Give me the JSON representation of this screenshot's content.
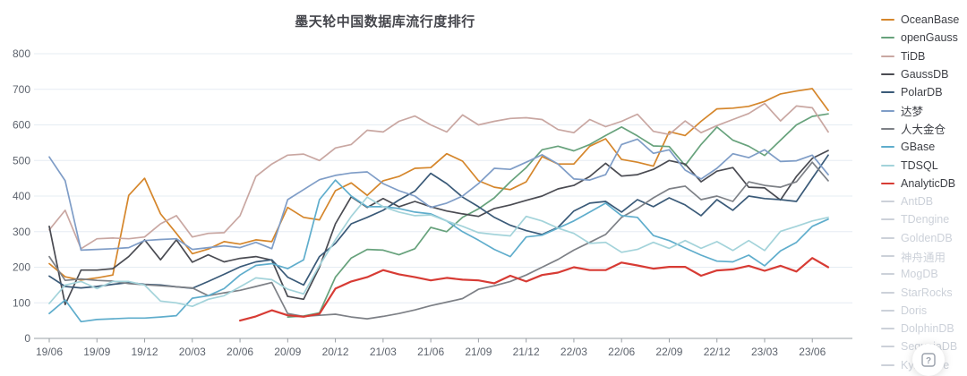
{
  "title": "墨天轮中国数据库流行度排行",
  "help_button": {
    "icon": "question-mark"
  },
  "chart_data": {
    "type": "line",
    "title": "墨天轮中国数据库流行度排行",
    "ylim": [
      0,
      800
    ],
    "y_ticks": [
      0,
      100,
      200,
      300,
      400,
      500,
      600,
      700,
      800
    ],
    "x_tick_labels": [
      "19/06",
      "19/09",
      "19/12",
      "20/03",
      "20/06",
      "20/09",
      "20/12",
      "21/03",
      "21/06",
      "21/09",
      "21/12",
      "22/03",
      "22/06",
      "22/09",
      "22/12",
      "23/03",
      "23/06"
    ],
    "x_interval": "monthly",
    "points_count": 50,
    "grid": true,
    "legend_position": "right",
    "series": [
      {
        "name": "OceanBase",
        "color": "#d5862b",
        "width": 1.7,
        "values": [
          210,
          173,
          164,
          170,
          178,
          402,
          450,
          350,
          295,
          238,
          251,
          272,
          265,
          277,
          272,
          368,
          340,
          333,
          415,
          437,
          402,
          443,
          455,
          478,
          480,
          519,
          498,
          443,
          425,
          418,
          440,
          511,
          490,
          490,
          540,
          561,
          503,
          495,
          484,
          581,
          570,
          610,
          645,
          647,
          652,
          666,
          687,
          695,
          702,
          641
        ]
      },
      {
        "name": "openGauss",
        "color": "#67a27c",
        "width": 1.7,
        "values": [
          null,
          null,
          null,
          null,
          null,
          null,
          null,
          null,
          null,
          null,
          null,
          null,
          null,
          null,
          null,
          60,
          63,
          72,
          172,
          226,
          250,
          248,
          235,
          252,
          312,
          300,
          340,
          364,
          395,
          440,
          480,
          530,
          540,
          527,
          545,
          570,
          594,
          569,
          541,
          539,
          486,
          545,
          594,
          557,
          540,
          514,
          557,
          600,
          624,
          631
        ]
      },
      {
        "name": "TiDB",
        "color": "#c9a7a2",
        "width": 1.7,
        "values": [
          305,
          360,
          252,
          280,
          282,
          280,
          285,
          322,
          345,
          285,
          295,
          297,
          345,
          455,
          490,
          515,
          518,
          500,
          535,
          545,
          585,
          580,
          610,
          625,
          600,
          580,
          628,
          600,
          610,
          618,
          620,
          615,
          587,
          578,
          615,
          595,
          610,
          630,
          582,
          573,
          611,
          578,
          598,
          615,
          632,
          660,
          611,
          653,
          648,
          580
        ]
      },
      {
        "name": "GaussDB",
        "color": "#4a4b52",
        "width": 1.7,
        "values": [
          315,
          95,
          192,
          192,
          196,
          230,
          277,
          221,
          277,
          214,
          235,
          215,
          225,
          230,
          220,
          118,
          110,
          200,
          322,
          398,
          368,
          393,
          370,
          385,
          370,
          358,
          350,
          343,
          365,
          375,
          388,
          400,
          420,
          430,
          455,
          492,
          456,
          460,
          475,
          500,
          490,
          440,
          470,
          480,
          425,
          423,
          389,
          455,
          506,
          528
        ]
      },
      {
        "name": "PolarDB",
        "color": "#3a5a78",
        "width": 1.7,
        "values": [
          175,
          146,
          142,
          146,
          152,
          157,
          152,
          150,
          145,
          141,
          160,
          180,
          201,
          215,
          221,
          172,
          150,
          230,
          267,
          322,
          340,
          360,
          389,
          414,
          464,
          435,
          397,
          370,
          340,
          318,
          303,
          292,
          312,
          358,
          380,
          385,
          355,
          390,
          370,
          395,
          375,
          345,
          390,
          360,
          400,
          393,
          390,
          385,
          450,
          515
        ]
      },
      {
        "name": "达梦",
        "color": "#7f9dc7",
        "width": 1.7,
        "values": [
          510,
          443,
          248,
          250,
          252,
          255,
          275,
          278,
          280,
          250,
          255,
          260,
          255,
          270,
          252,
          390,
          418,
          446,
          458,
          465,
          468,
          435,
          415,
          400,
          368,
          380,
          400,
          435,
          478,
          475,
          495,
          516,
          490,
          448,
          445,
          460,
          545,
          560,
          520,
          530,
          473,
          448,
          478,
          519,
          508,
          530,
          497,
          499,
          515,
          460
        ]
      },
      {
        "name": "人大金仓",
        "color": "#7d8086",
        "width": 1.7,
        "values": [
          230,
          163,
          167,
          163,
          161,
          154,
          151,
          148,
          145,
          142,
          120,
          128,
          135,
          146,
          157,
          70,
          62,
          65,
          68,
          60,
          55,
          62,
          70,
          80,
          92,
          102,
          112,
          138,
          148,
          160,
          178,
          200,
          222,
          248,
          270,
          292,
          340,
          365,
          395,
          420,
          428,
          390,
          400,
          385,
          440,
          430,
          425,
          440,
          495,
          443
        ]
      },
      {
        "name": "GBase",
        "color": "#5fadcc",
        "width": 1.7,
        "values": [
          70,
          108,
          47,
          53,
          55,
          57,
          57,
          60,
          64,
          113,
          120,
          140,
          178,
          205,
          210,
          196,
          221,
          390,
          445,
          400,
          370,
          370,
          365,
          355,
          350,
          330,
          300,
          276,
          250,
          230,
          285,
          290,
          310,
          330,
          355,
          380,
          345,
          340,
          289,
          275,
          254,
          234,
          217,
          215,
          234,
          204,
          246,
          270,
          315,
          335
        ]
      },
      {
        "name": "TDSQL",
        "color": "#a3d3da",
        "width": 1.7,
        "values": [
          98,
          150,
          160,
          140,
          160,
          160,
          150,
          105,
          100,
          90,
          110,
          120,
          145,
          170,
          165,
          138,
          125,
          205,
          277,
          343,
          397,
          370,
          355,
          345,
          347,
          330,
          315,
          297,
          292,
          288,
          343,
          330,
          310,
          295,
          267,
          270,
          242,
          250,
          270,
          253,
          275,
          253,
          272,
          247,
          275,
          247,
          301,
          315,
          330,
          340
        ]
      },
      {
        "name": "AnalyticDB",
        "color": "#d73b34",
        "width": 2.2,
        "values": [
          null,
          null,
          null,
          null,
          null,
          null,
          null,
          null,
          null,
          null,
          null,
          null,
          50,
          62,
          79,
          65,
          61,
          69,
          140,
          160,
          172,
          192,
          180,
          172,
          163,
          170,
          165,
          163,
          155,
          176,
          160,
          178,
          185,
          200,
          192,
          192,
          213,
          205,
          196,
          201,
          201,
          176,
          191,
          194,
          204,
          190,
          204,
          188,
          226,
          200
        ]
      }
    ],
    "disabled_series": [
      "AntDB",
      "TDengine",
      "GoldenDB",
      "神舟通用",
      "MogDB",
      "StarRocks",
      "Doris",
      "DolphinDB",
      "SequoiaDB",
      "Kyligence"
    ],
    "disabled_color": "#ccd1d9"
  }
}
